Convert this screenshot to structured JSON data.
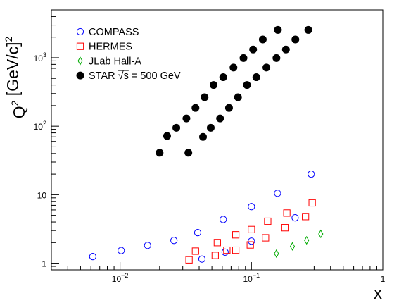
{
  "chart_data": {
    "type": "scatter",
    "title": "",
    "xlabel": "x",
    "ylabel": "Q² [GeV/c]²",
    "xscale": "log",
    "yscale": "log",
    "xlim": [
      0.003,
      1
    ],
    "ylim": [
      0.8,
      5000
    ],
    "x_tick_labels": [
      {
        "value": 0.01,
        "base": "10",
        "exp": "−2"
      },
      {
        "value": 0.1,
        "base": "10",
        "exp": "−1"
      },
      {
        "value": 1,
        "base": "1",
        "exp": ""
      }
    ],
    "y_tick_labels": [
      {
        "value": 1,
        "base": "1",
        "exp": ""
      },
      {
        "value": 10,
        "base": "10",
        "exp": ""
      },
      {
        "value": 100,
        "base": "10",
        "exp": "2"
      },
      {
        "value": 1000,
        "base": "10",
        "exp": "3"
      }
    ],
    "legend_position": "top-left",
    "grid": false,
    "series": [
      {
        "name": "COMPASS",
        "marker": "open-circle",
        "color": "#0000ff",
        "points": [
          [
            0.0062,
            1.25
          ],
          [
            0.0102,
            1.53
          ],
          [
            0.0162,
            1.82
          ],
          [
            0.0257,
            2.15
          ],
          [
            0.039,
            2.8
          ],
          [
            0.061,
            4.35
          ],
          [
            0.1,
            6.7
          ],
          [
            0.158,
            10.5
          ],
          [
            0.285,
            20.0
          ],
          [
            0.042,
            1.15
          ],
          [
            0.063,
            1.45
          ],
          [
            0.1,
            2.1
          ],
          [
            0.215,
            4.6
          ]
        ]
      },
      {
        "name": "HERMES",
        "marker": "open-square",
        "color": "#ff0000",
        "points": [
          [
            0.0335,
            1.12
          ],
          [
            0.0375,
            1.5
          ],
          [
            0.053,
            1.3
          ],
          [
            0.055,
            2.0
          ],
          [
            0.065,
            1.55
          ],
          [
            0.076,
            2.6
          ],
          [
            0.076,
            1.55
          ],
          [
            0.1,
            3.1
          ],
          [
            0.098,
            1.85
          ],
          [
            0.133,
            4.1
          ],
          [
            0.128,
            2.35
          ],
          [
            0.186,
            5.4
          ],
          [
            0.18,
            3.3
          ],
          [
            0.258,
            4.8
          ],
          [
            0.29,
            7.6
          ]
        ]
      },
      {
        "name": "JLab Hall-A",
        "marker": "open-diamond",
        "color": "#00aa00",
        "points": [
          [
            0.155,
            1.38
          ],
          [
            0.205,
            1.76
          ],
          [
            0.263,
            2.16
          ],
          [
            0.337,
            2.68
          ]
        ]
      },
      {
        "name_prefix": "STAR ",
        "name_root": "√s",
        "name_suffix": " = 500 GeV",
        "marker": "filled-circle",
        "color": "#000000",
        "points": [
          [
            0.02,
            41
          ],
          [
            0.0228,
            72
          ],
          [
            0.0268,
            95
          ],
          [
            0.032,
            130
          ],
          [
            0.0375,
            185
          ],
          [
            0.044,
            265
          ],
          [
            0.0515,
            400
          ],
          [
            0.061,
            520
          ],
          [
            0.073,
            720
          ],
          [
            0.087,
            990
          ],
          [
            0.103,
            1320
          ],
          [
            0.122,
            1850
          ],
          [
            0.159,
            2550
          ],
          [
            0.0331,
            41
          ],
          [
            0.0428,
            70
          ],
          [
            0.049,
            95
          ],
          [
            0.0577,
            130
          ],
          [
            0.0675,
            185
          ],
          [
            0.079,
            265
          ],
          [
            0.0925,
            400
          ],
          [
            0.109,
            520
          ],
          [
            0.13,
            720
          ],
          [
            0.155,
            990
          ],
          [
            0.183,
            1320
          ],
          [
            0.216,
            1850
          ],
          [
            0.271,
            2550
          ]
        ]
      }
    ]
  }
}
